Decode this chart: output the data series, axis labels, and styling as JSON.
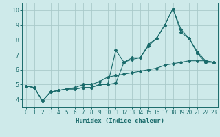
{
  "title": "",
  "xlabel": "Humidex (Indice chaleur)",
  "ylabel": "",
  "background_color": "#ceeaea",
  "grid_color": "#aacaca",
  "line_color": "#1a6b6b",
  "xlim": [
    -0.5,
    23.5
  ],
  "ylim": [
    3.5,
    10.5
  ],
  "xticks": [
    0,
    1,
    2,
    3,
    4,
    5,
    6,
    7,
    8,
    9,
    10,
    11,
    12,
    13,
    14,
    15,
    16,
    17,
    18,
    19,
    20,
    21,
    22,
    23
  ],
  "yticks": [
    4,
    5,
    6,
    7,
    8,
    9,
    10
  ],
  "line1_x": [
    0,
    1,
    2,
    3,
    4,
    5,
    6,
    7,
    8,
    9,
    10,
    11,
    12,
    13,
    14,
    15,
    16,
    17,
    18,
    19,
    20,
    21,
    22,
    23
  ],
  "line1_y": [
    4.9,
    4.8,
    3.9,
    4.5,
    4.6,
    4.7,
    4.7,
    4.8,
    4.8,
    5.0,
    5.0,
    5.1,
    6.5,
    6.7,
    6.8,
    7.6,
    8.1,
    9.0,
    10.1,
    8.5,
    8.1,
    7.2,
    6.6,
    6.5
  ],
  "line2_x": [
    0,
    1,
    2,
    3,
    4,
    5,
    6,
    7,
    8,
    9,
    10,
    11,
    12,
    13,
    14,
    15,
    16,
    17,
    18,
    19,
    20,
    21,
    22,
    23
  ],
  "line2_y": [
    4.9,
    4.8,
    3.9,
    4.5,
    4.6,
    4.7,
    4.7,
    4.8,
    4.8,
    5.0,
    5.0,
    7.3,
    6.5,
    6.8,
    6.8,
    7.7,
    8.1,
    9.0,
    10.1,
    8.7,
    8.1,
    7.1,
    6.5,
    6.5
  ],
  "line3_x": [
    0,
    1,
    2,
    3,
    4,
    5,
    6,
    7,
    8,
    9,
    10,
    11,
    12,
    13,
    14,
    15,
    16,
    17,
    18,
    19,
    20,
    21,
    22,
    23
  ],
  "line3_y": [
    4.9,
    4.8,
    3.9,
    4.5,
    4.6,
    4.7,
    4.8,
    5.0,
    5.0,
    5.2,
    5.5,
    5.6,
    5.7,
    5.8,
    5.9,
    6.0,
    6.1,
    6.3,
    6.4,
    6.5,
    6.6,
    6.6,
    6.6,
    6.5
  ],
  "xlabel_fontsize": 6.5,
  "tick_fontsize": 5.5
}
